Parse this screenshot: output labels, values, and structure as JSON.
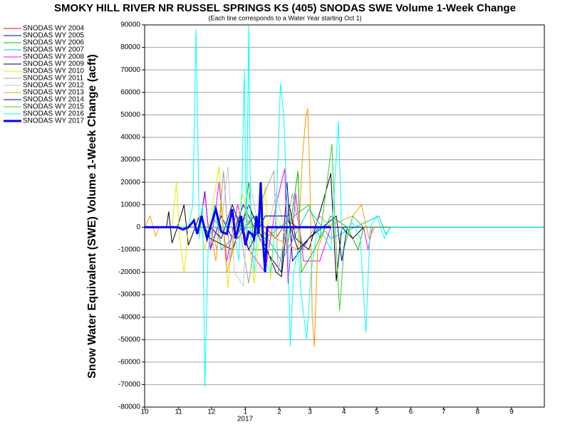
{
  "chart_data": {
    "type": "line",
    "title": "SMOKY HILL RIVER NR RUSSEL SPRINGS KS (405) SNODAS SWE Volume 1-Week Change",
    "subtitle": "(Each line corresponds to a Water Year starting Oct 1)",
    "y_label": "Snow Water Equivalent (SWE) Volume 1-Week Change (acft)",
    "x_sublabel": "2017",
    "xlim": [
      0,
      365
    ],
    "xticks": [
      {
        "value": 0,
        "label": "10"
      },
      {
        "value": 31,
        "label": "11"
      },
      {
        "value": 61,
        "label": "12"
      },
      {
        "value": 92,
        "label": "1"
      },
      {
        "value": 123,
        "label": "2"
      },
      {
        "value": 151,
        "label": "3"
      },
      {
        "value": 182,
        "label": "4"
      },
      {
        "value": 212,
        "label": "5"
      },
      {
        "value": 243,
        "label": "6"
      },
      {
        "value": 273,
        "label": "7"
      },
      {
        "value": 304,
        "label": "8"
      },
      {
        "value": 335,
        "label": "9"
      }
    ],
    "ylim": [
      -80000,
      90000
    ],
    "yticks": [
      -80000,
      -70000,
      -60000,
      -50000,
      -40000,
      -30000,
      -20000,
      -10000,
      0,
      10000,
      20000,
      30000,
      40000,
      50000,
      60000,
      70000,
      80000,
      90000
    ],
    "grid": true,
    "legend": "upper-left-outside",
    "series": [
      {
        "name": "SNODAS WY 2004",
        "color": "#ff0000",
        "x": [
          0,
          80,
          85,
          100,
          120,
          130,
          140,
          365
        ],
        "values": [
          0,
          0,
          -5000,
          5000,
          -5000,
          3000,
          0,
          0
        ]
      },
      {
        "name": "SNODAS WY 2005",
        "color": "#0000a0",
        "x": [
          0,
          50,
          55,
          60,
          70,
          80,
          90,
          110,
          125,
          130,
          135,
          150,
          175,
          180,
          185,
          365
        ],
        "values": [
          0,
          0,
          16000,
          -10000,
          5000,
          -5000,
          10000,
          -10000,
          -20000,
          20000,
          -15000,
          -5000,
          5000,
          -15000,
          0,
          0
        ]
      },
      {
        "name": "SNODAS WY 2006",
        "color": "#00c000",
        "x": [
          0,
          90,
          95,
          100,
          130,
          140,
          143,
          155,
          170,
          185,
          195,
          200,
          365
        ],
        "values": [
          0,
          0,
          20000,
          -10000,
          -10000,
          25000,
          -20000,
          -10000,
          5000,
          0,
          -10000,
          0,
          0
        ]
      },
      {
        "name": "SNODAS WY 2007",
        "color": "#00c8c8",
        "x": [
          0,
          60,
          64,
          70,
          100,
          125,
          150,
          170,
          214,
          220,
          225,
          365
        ],
        "values": [
          0,
          0,
          10000,
          -10000,
          5000,
          -15000,
          8000,
          -5000,
          5000,
          -3000,
          0,
          0
        ]
      },
      {
        "name": "SNODAS WY 2008",
        "color": "#ff00ff",
        "x": [
          0,
          50,
          55,
          60,
          68,
          75,
          85,
          95,
          110,
          120,
          128,
          131,
          138,
          145,
          160,
          170,
          200,
          204,
          208,
          365
        ],
        "values": [
          0,
          0,
          15000,
          -10000,
          20000,
          -15000,
          10000,
          -10000,
          -20000,
          10000,
          26000,
          -25000,
          15000,
          -15000,
          -15000,
          0,
          0,
          -10000,
          0,
          0
        ]
      },
      {
        "name": "SNODAS WY 2009",
        "color": "#000000",
        "x": [
          0,
          20,
          22,
          25,
          30,
          36,
          40,
          50,
          60,
          80,
          95,
          120,
          125,
          132,
          138,
          150,
          165,
          170,
          175,
          180,
          190,
          200,
          365
        ],
        "values": [
          0,
          0,
          7000,
          -7000,
          0,
          10000,
          -8000,
          5000,
          -5000,
          -10000,
          10000,
          -20000,
          -22000,
          10000,
          -5000,
          -10000,
          15000,
          24000,
          -24000,
          0,
          -5000,
          0,
          0
        ]
      },
      {
        "name": "SNODAS WY 2010",
        "color": "#e8e800",
        "x": [
          0,
          25,
          29,
          32,
          36,
          40,
          50,
          55,
          62,
          68,
          72,
          76,
          80,
          90,
          100,
          110,
          115,
          120,
          130,
          140,
          365
        ],
        "values": [
          0,
          0,
          20000,
          -5000,
          -20000,
          0,
          5000,
          -10000,
          10000,
          27000,
          0,
          -27000,
          -5000,
          15000,
          -25000,
          18000,
          -23000,
          5000,
          -5000,
          0,
          0
        ]
      },
      {
        "name": "SNODAS WY 2011",
        "color": "#a0a0a0",
        "x": [
          0,
          60,
          66,
          72,
          78,
          85,
          95,
          105,
          118,
          122,
          135,
          145,
          160,
          170,
          365
        ],
        "values": [
          0,
          0,
          -10000,
          25000,
          -15000,
          5000,
          -25000,
          10000,
          25000,
          -20000,
          15000,
          -10000,
          5000,
          0,
          0
        ]
      },
      {
        "name": "SNODAS WY 2012",
        "color": "#c8c8c8",
        "x": [
          0,
          70,
          76,
          82,
          90,
          96,
          108,
          120,
          130,
          140,
          365
        ],
        "values": [
          0,
          0,
          27000,
          -20000,
          -26000,
          20000,
          -10000,
          15000,
          -5000,
          0,
          0
        ]
      },
      {
        "name": "SNODAS WY 2013",
        "color": "#ff9900",
        "x": [
          0,
          5,
          10,
          13,
          60,
          65,
          70,
          75,
          90,
          100,
          140,
          144,
          147,
          149,
          151,
          153,
          155,
          158,
          165,
          190,
          198,
          205,
          210,
          365
        ],
        "values": [
          0,
          5000,
          -4000,
          0,
          0,
          -15000,
          10000,
          -20000,
          5000,
          0,
          -10000,
          30000,
          48000,
          53000,
          20000,
          -40000,
          -53000,
          -10000,
          0,
          5000,
          10000,
          -5000,
          0,
          0
        ]
      },
      {
        "name": "SNODAS WY 2014",
        "color": "#000080",
        "x": [
          0,
          60,
          70,
          80,
          95,
          110,
          130,
          140,
          160,
          365
        ],
        "values": [
          0,
          0,
          -5000,
          10000,
          -10000,
          5000,
          5000,
          -10000,
          0,
          0
        ]
      },
      {
        "name": "SNODAS WY 2015",
        "color": "#33cc33",
        "x": [
          0,
          100,
          110,
          150,
          160,
          171,
          174,
          178,
          182,
          190,
          200,
          365
        ],
        "values": [
          0,
          0,
          -5000,
          10000,
          -5000,
          37000,
          0,
          -37000,
          -10000,
          5000,
          0,
          0
        ]
      },
      {
        "name": "SNODAS WY 2016",
        "color": "#00ffff",
        "x": [
          0,
          40,
          44,
          47,
          50,
          53,
          55,
          58,
          62,
          70,
          80,
          86,
          89,
          91,
          93,
          95,
          97,
          100,
          105,
          110,
          115,
          120,
          124,
          127,
          130,
          133,
          136,
          140,
          143,
          148,
          152,
          158,
          165,
          170,
          177,
          180,
          190,
          197,
          202,
          206,
          212,
          219,
          224,
          365
        ],
        "values": [
          0,
          0,
          10000,
          88000,
          -5000,
          10000,
          -71000,
          -10000,
          5000,
          -2000,
          5000,
          -15000,
          20000,
          70000,
          -8000,
          90000,
          -5000,
          -20000,
          10000,
          -15000,
          -20000,
          5000,
          64000,
          50000,
          10000,
          -53000,
          -20000,
          -10000,
          -30000,
          -50000,
          -20000,
          0,
          -5000,
          -10000,
          47000,
          -3000,
          2000,
          -5000,
          -47000,
          0,
          5000,
          -5000,
          0,
          0
        ]
      },
      {
        "name": "SNODAS WY 2017",
        "color": "#0000ff",
        "line_width": 3,
        "x": [
          0,
          20,
          30,
          35,
          40,
          45,
          48,
          52,
          57,
          60,
          65,
          70,
          75,
          80,
          83,
          88,
          92,
          95,
          98,
          100,
          102,
          104,
          106,
          108,
          110,
          112,
          118,
          130,
          170
        ],
        "values": [
          0,
          0,
          0,
          -1000,
          0,
          3000,
          -3000,
          5000,
          -5000,
          0,
          8000,
          -2000,
          -3000,
          8000,
          -5000,
          5000,
          -8000,
          -2000,
          -3000,
          -5000,
          5000,
          -3000,
          20000,
          -5000,
          -20000,
          0,
          0,
          0,
          0
        ]
      }
    ]
  }
}
